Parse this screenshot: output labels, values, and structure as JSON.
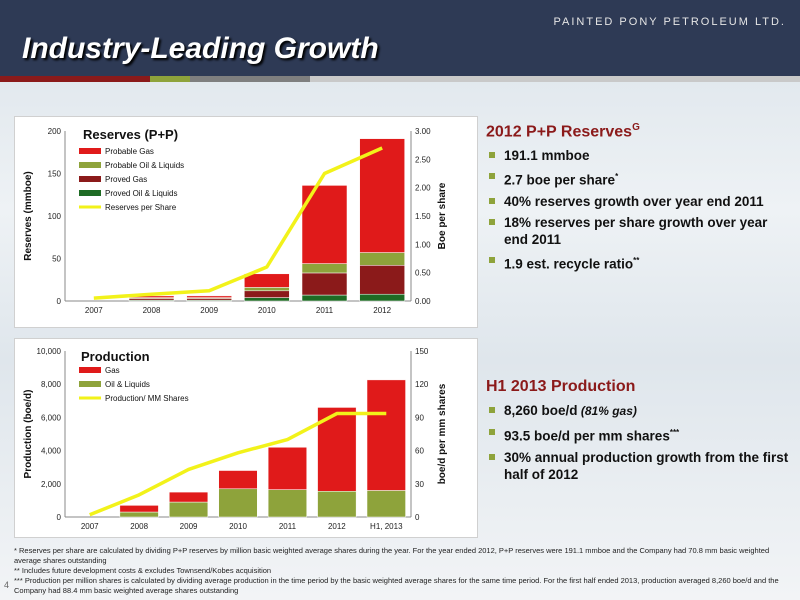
{
  "header": {
    "company": "PAINTED PONY PETROLEUM LTD.",
    "title": "Industry-Leading Growth"
  },
  "page_number": "4",
  "reserves_text": {
    "title": "2012 P+P Reserves",
    "title_sup": "G",
    "bullets": [
      {
        "text": "191.1 mmboe",
        "sup": ""
      },
      {
        "text": "2.7 boe per share",
        "sup": "*"
      },
      {
        "text": "40% reserves growth over year end 2011",
        "sup": ""
      },
      {
        "text": "18% reserves per share growth over year end 2011",
        "sup": ""
      },
      {
        "text": "1.9 est. recycle ratio",
        "sup": "**"
      }
    ]
  },
  "production_text": {
    "title": "H1 2013 Production",
    "bullets": [
      {
        "text": "8,260 boe/d",
        "italic": "(81% gas)",
        "sup": ""
      },
      {
        "text": "93.5 boe/d per mm shares",
        "italic": "",
        "sup": "***"
      },
      {
        "text": "30% annual production growth from the first half of 2012",
        "italic": "",
        "sup": ""
      }
    ]
  },
  "footnotes": [
    {
      "mark": "*",
      "text": "Reserves per share are calculated by dividing P+P reserves by million basic weighted average shares during the year. For the year ended 2012, P+P reserves were 191.1 mmboe and the Company had 70.8 mm basic weighted average shares outstanding"
    },
    {
      "mark": "**",
      "text": "Includes future development costs & excludes Townsend/Kobes acquisition"
    },
    {
      "mark": "***",
      "text": "Production per million shares is calculated by dividing average production in the time period by the basic weighted average shares for the same time period. For the first half ended 2013, production averaged 8,260 boe/d and the Company had 88.4 mm basic weighted average shares outstanding"
    }
  ],
  "colors": {
    "gas": "#e01a1a",
    "oil": "#8ea33b",
    "proved_gas": "#8b1a1a",
    "proved_oil": "#1e6b24",
    "line": "#f2f21a"
  },
  "chart_data": [
    {
      "type": "bar",
      "title": "Reserves (P+P)",
      "ylabel": "Reserves (mmboe)",
      "y2label": "Boe per share",
      "categories": [
        "2007",
        "2008",
        "2009",
        "2010",
        "2011",
        "2012"
      ],
      "ylim": [
        0,
        200
      ],
      "yticks": [
        "0",
        "50",
        "100",
        "150",
        "200"
      ],
      "y2lim": [
        0,
        3
      ],
      "y2ticks": [
        "0.00",
        "0.50",
        "1.00",
        "1.50",
        "2.00",
        "2.50",
        "3.00"
      ],
      "series": [
        {
          "name": "Proved Oil & Liquids",
          "values": [
            0,
            1,
            1,
            4,
            7,
            8
          ],
          "color": "#1e6b24"
        },
        {
          "name": "Proved Gas",
          "values": [
            0,
            2,
            2,
            8,
            26,
            34
          ],
          "color": "#8b1a1a"
        },
        {
          "name": "Probable Oil & Liquids",
          "values": [
            0,
            1,
            1,
            4,
            11,
            15
          ],
          "color": "#8ea33b"
        },
        {
          "name": "Probable Gas",
          "values": [
            0,
            2,
            2,
            16,
            92,
            134
          ],
          "color": "#e01a1a"
        }
      ],
      "line": {
        "name": "Reserves per Share",
        "values": [
          0.05,
          0.12,
          0.18,
          0.6,
          2.25,
          2.7
        ],
        "color": "#f2f21a"
      },
      "legend_order": [
        "Probable Gas",
        "Probable Oil & Liquids",
        "Proved Gas",
        "Proved Oil & Liquids",
        "Reserves per Share"
      ]
    },
    {
      "type": "bar",
      "title": "Production",
      "ylabel": "Production (boe/d)",
      "y2label": "boe/d per mm shares",
      "categories": [
        "2007",
        "2008",
        "2009",
        "2010",
        "2011",
        "2012",
        "H1, 2013"
      ],
      "ylim": [
        0,
        10000
      ],
      "yticks": [
        "0",
        "2,000",
        "4,000",
        "6,000",
        "8,000",
        "10,000"
      ],
      "y2lim": [
        0,
        150
      ],
      "y2ticks": [
        "0",
        "30",
        "60",
        "90",
        "120",
        "150"
      ],
      "series": [
        {
          "name": "Oil & Liquids",
          "values": [
            0,
            300,
            900,
            1700,
            1650,
            1550,
            1600
          ],
          "color": "#8ea33b"
        },
        {
          "name": "Gas",
          "values": [
            0,
            400,
            600,
            1100,
            2550,
            5050,
            6660
          ],
          "color": "#e01a1a"
        }
      ],
      "line": {
        "name": "Production/ MM Shares",
        "values": [
          2,
          20,
          43,
          58,
          70,
          93.5,
          93.5
        ],
        "color": "#f2f21a"
      },
      "legend_order": [
        "Gas",
        "Oil & Liquids",
        "Production/ MM Shares"
      ]
    }
  ]
}
